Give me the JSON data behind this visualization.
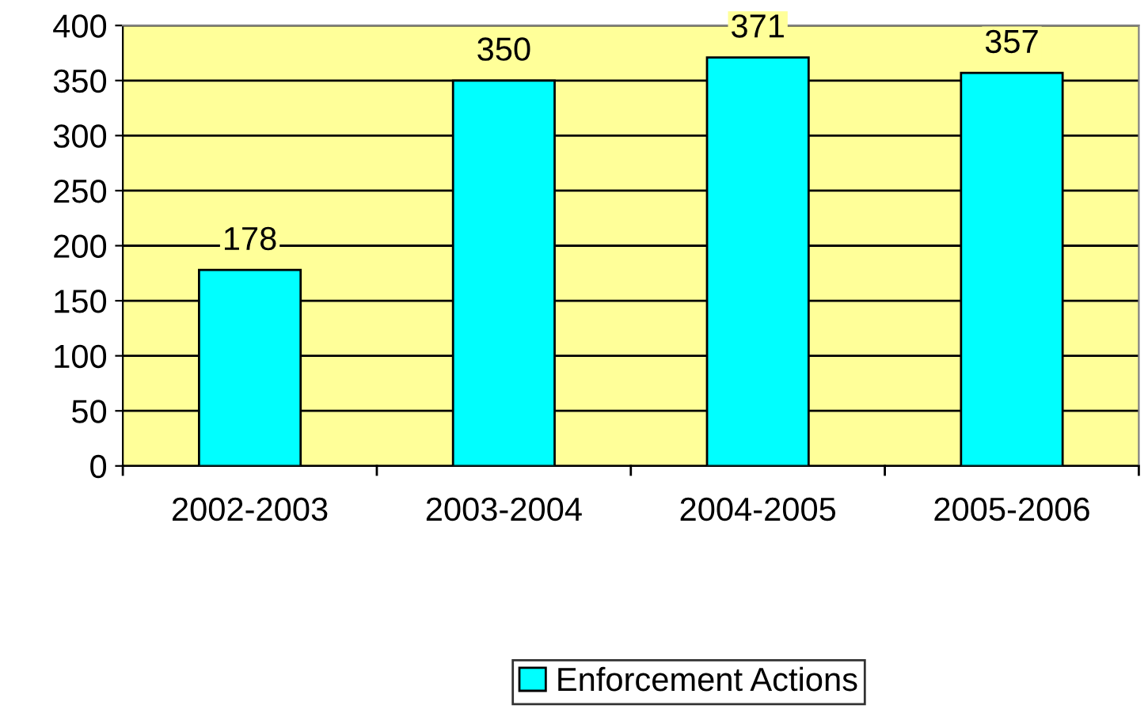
{
  "chart_data": {
    "type": "bar",
    "categories": [
      "2002-2003",
      "2003-2004",
      "2004-2005",
      "2005-2006"
    ],
    "series": [
      {
        "name": "Enforcement Actions",
        "color": "#00ffff",
        "values": [
          178,
          350,
          371,
          357
        ]
      }
    ],
    "ylim": [
      0,
      400
    ],
    "yticks": [
      0,
      50,
      100,
      150,
      200,
      250,
      300,
      350,
      400
    ],
    "grid": "y",
    "legend": "bottom",
    "data_labels": true
  }
}
